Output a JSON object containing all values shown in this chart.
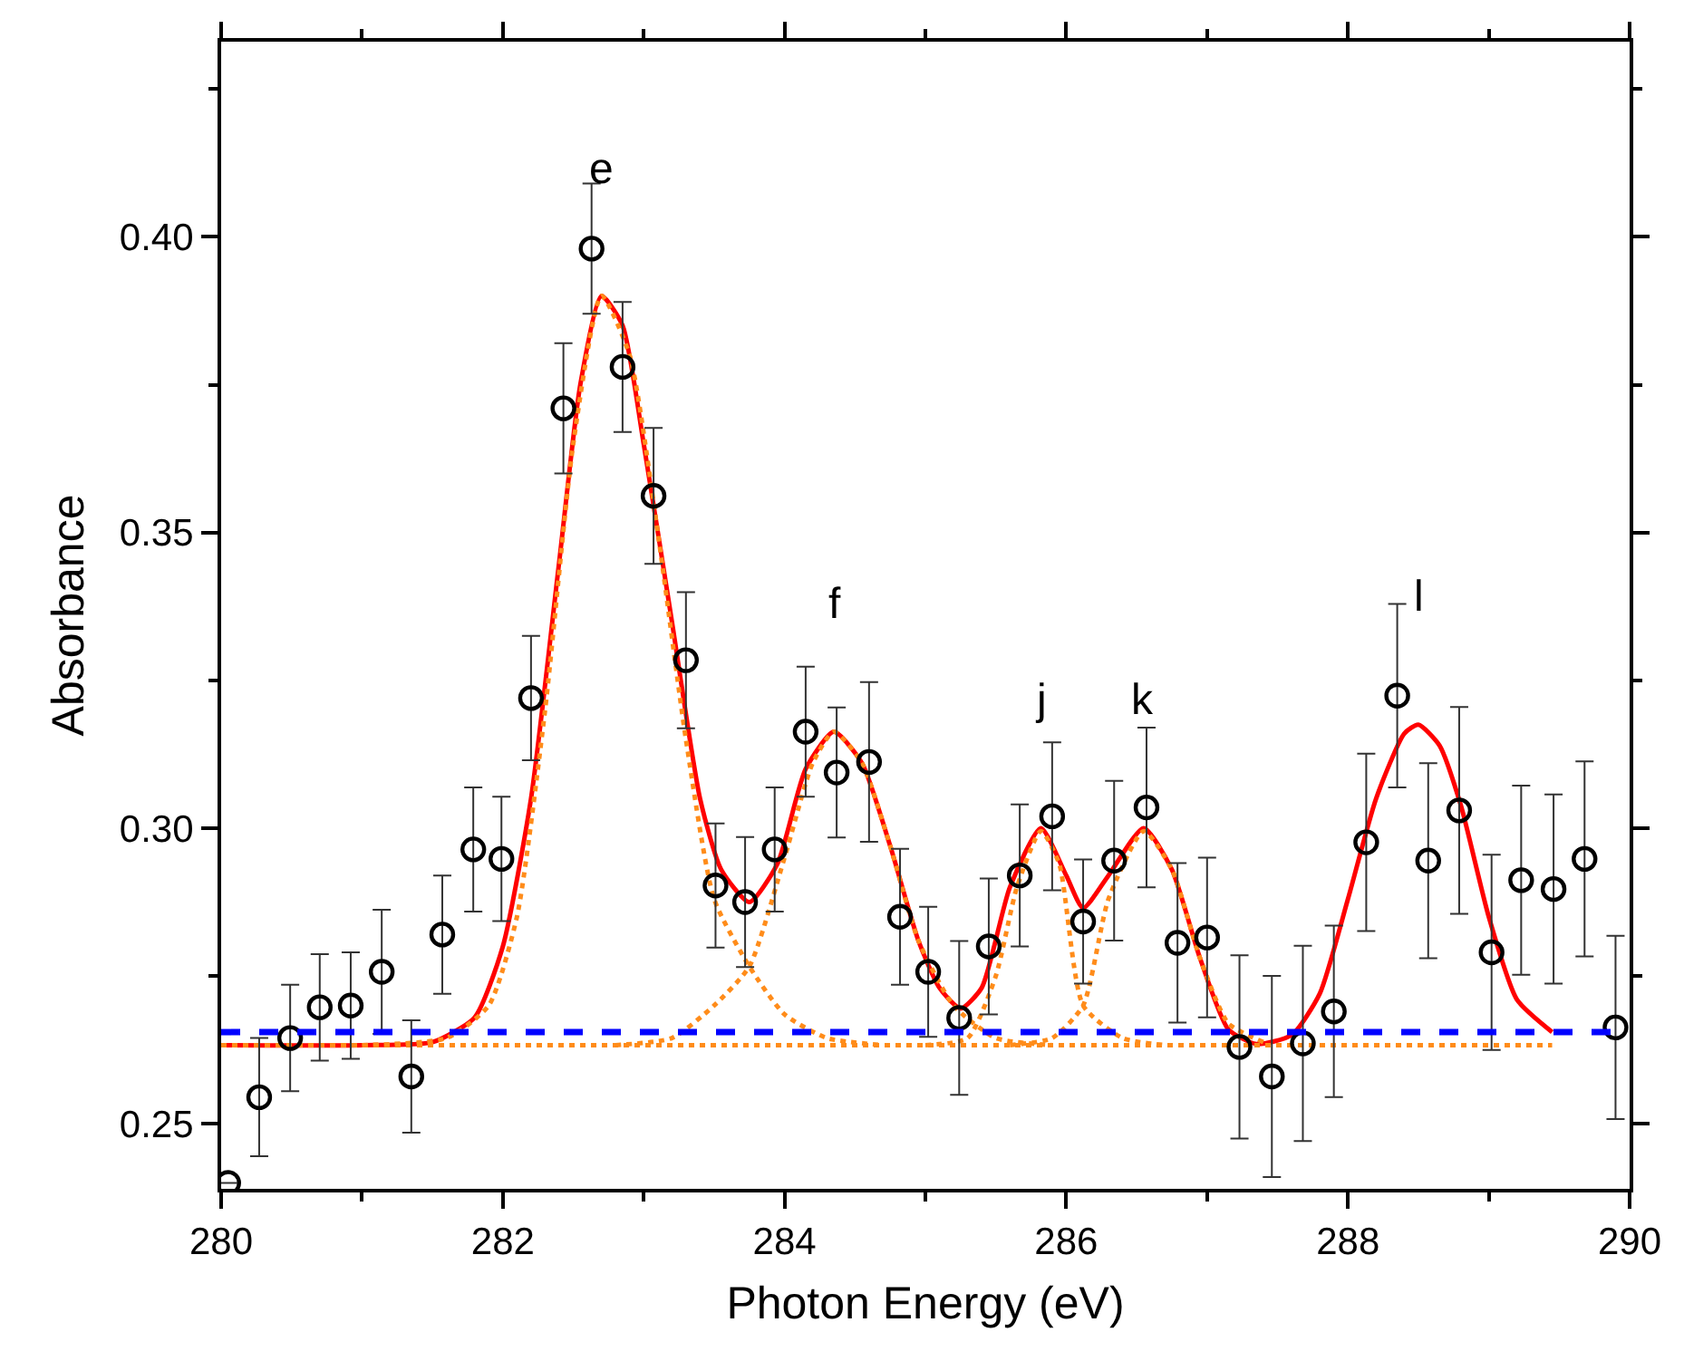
{
  "chart_data": {
    "type": "scatter",
    "xlabel": "Photon Energy (eV)",
    "ylabel": "Absorbance",
    "xlim": [
      280,
      290
    ],
    "ylim": [
      0.239,
      0.433
    ],
    "xticks": [
      280,
      {
        "value": 281,
        "label": null
      },
      282,
      {
        "value": 283,
        "label": null
      },
      284,
      {
        "value": 285,
        "label": null
      },
      286,
      {
        "value": 287,
        "label": null
      },
      288,
      {
        "value": 289,
        "label": null
      },
      290
    ],
    "yticks": [
      0.25,
      {
        "value": 0.275,
        "label": null
      },
      {
        "value": 0.3,
        "label": "0.30"
      },
      {
        "value": 0.325,
        "label": null
      },
      0.35,
      {
        "value": 0.375,
        "label": null
      },
      {
        "value": 0.4,
        "label": "0.40"
      },
      {
        "value": 0.425,
        "label": null
      }
    ],
    "ref_lines": [
      {
        "axis": "y",
        "value": 0.2655,
        "color": "#0000ff",
        "line_style": "dashed"
      }
    ],
    "annotations": [
      {
        "text": "e",
        "x": 282.7,
        "y": 0.39
      },
      {
        "text": "f",
        "x": 284.35,
        "y": 0.3163
      },
      {
        "text": "j",
        "x": 285.82,
        "y": 0.3
      },
      {
        "text": "k",
        "x": 286.55,
        "y": 0.3
      },
      {
        "text": "l",
        "x": 288.5,
        "y": 0.3175
      }
    ],
    "series": [
      {
        "type": "line",
        "color": "#ff8c1a",
        "line_style": "dotted",
        "marker": "none",
        "x": [
          280.0,
          289.45
        ],
        "values": [
          0.2633,
          0.2633
        ]
      },
      {
        "type": "line",
        "color": "#ff8c1a",
        "line_style": "dotted",
        "marker": "none",
        "x": [
          281.0,
          281.6,
          281.9,
          282.1,
          282.3,
          282.5,
          282.7,
          282.9,
          283.1,
          283.3,
          283.5,
          283.75,
          284.0,
          284.3,
          284.7
        ],
        "values": [
          0.2633,
          0.2645,
          0.27,
          0.285,
          0.32,
          0.365,
          0.39,
          0.38,
          0.35,
          0.315,
          0.288,
          0.2766,
          0.2685,
          0.2645,
          0.2633
        ]
      },
      {
        "type": "line",
        "color": "#ff8c1a",
        "line_style": "dotted",
        "marker": "none",
        "x": [
          282.8,
          283.2,
          283.5,
          283.75,
          284.0,
          284.2,
          284.35,
          284.55,
          284.75,
          284.95,
          285.2,
          285.5,
          285.9
        ],
        "values": [
          0.2633,
          0.2645,
          0.27,
          0.2766,
          0.295,
          0.311,
          0.3163,
          0.311,
          0.297,
          0.281,
          0.27,
          0.2645,
          0.2633
        ]
      },
      {
        "type": "line",
        "color": "#ff8c1a",
        "line_style": "dotted",
        "marker": "none",
        "x": [
          285.0,
          285.3,
          285.5,
          285.65,
          285.82,
          285.95,
          286.12,
          286.4,
          286.7
        ],
        "values": [
          0.2633,
          0.2645,
          0.275,
          0.29,
          0.2995,
          0.294,
          0.27,
          0.2645,
          0.2633
        ]
      },
      {
        "type": "line",
        "color": "#ff8c1a",
        "line_style": "dotted",
        "marker": "none",
        "x": [
          285.6,
          285.9,
          286.12,
          286.3,
          286.55,
          286.75,
          286.95,
          287.15,
          287.4
        ],
        "values": [
          0.2633,
          0.2645,
          0.27,
          0.288,
          0.2995,
          0.293,
          0.278,
          0.267,
          0.2638
        ]
      },
      {
        "type": "line",
        "color": "#ff0000",
        "line_style": "solid",
        "marker": "none",
        "x": [
          280.0,
          281.0,
          281.5,
          281.8,
          282.0,
          282.2,
          282.4,
          282.55,
          282.7,
          282.85,
          283.0,
          283.2,
          283.4,
          283.55,
          283.75,
          283.95,
          284.15,
          284.35,
          284.55,
          284.75,
          284.95,
          285.1,
          285.25,
          285.4,
          285.6,
          285.82,
          286.0,
          286.12,
          286.3,
          286.55,
          286.75,
          286.95,
          287.15,
          287.35,
          287.6,
          287.8,
          288.0,
          288.2,
          288.4,
          288.5,
          288.65,
          288.8,
          289.0,
          289.2,
          289.45
        ],
        "values": [
          0.2633,
          0.2633,
          0.2638,
          0.268,
          0.28,
          0.305,
          0.345,
          0.375,
          0.39,
          0.385,
          0.365,
          0.335,
          0.305,
          0.293,
          0.2875,
          0.294,
          0.31,
          0.3163,
          0.311,
          0.297,
          0.281,
          0.273,
          0.2695,
          0.273,
          0.29,
          0.3,
          0.292,
          0.2865,
          0.292,
          0.3,
          0.293,
          0.278,
          0.266,
          0.2635,
          0.265,
          0.272,
          0.288,
          0.305,
          0.316,
          0.3175,
          0.314,
          0.304,
          0.285,
          0.271,
          0.2655
        ]
      },
      {
        "color": "#000000",
        "marker": "circle",
        "x": [
          280.05,
          280.27,
          280.49,
          280.7,
          280.92,
          281.14,
          281.35,
          281.57,
          281.79,
          281.99,
          282.2,
          282.43,
          282.63,
          282.85,
          283.07,
          283.3,
          283.51,
          283.72,
          283.93,
          284.15,
          284.37,
          284.6,
          284.82,
          285.02,
          285.24,
          285.45,
          285.67,
          285.9,
          286.12,
          286.34,
          286.57,
          286.79,
          287.0,
          287.23,
          287.46,
          287.68,
          287.9,
          288.13,
          288.35,
          288.57,
          288.79,
          289.02,
          289.23,
          289.46,
          289.68,
          289.9
        ],
        "values": [
          0.24,
          0.2545,
          0.2645,
          0.2697,
          0.27,
          0.2757,
          0.258,
          0.282,
          0.2964,
          0.2948,
          0.322,
          0.371,
          0.398,
          0.378,
          0.3562,
          0.3284,
          0.2903,
          0.2875,
          0.2964,
          0.3163,
          0.3094,
          0.3112,
          0.285,
          0.2757,
          0.2679,
          0.28,
          0.292,
          0.302,
          0.2842,
          0.2945,
          0.3035,
          0.2806,
          0.2815,
          0.263,
          0.258,
          0.2636,
          0.269,
          0.2976,
          0.3224,
          0.2945,
          0.303,
          0.279,
          0.2912,
          0.2897,
          0.2948,
          0.2663
        ],
        "errors": [
          null,
          0.01,
          0.009,
          0.009,
          0.009,
          0.0105,
          0.0095,
          0.01,
          0.0105,
          0.0105,
          0.0105,
          0.011,
          0.011,
          0.011,
          0.0115,
          0.0115,
          0.0105,
          0.011,
          0.0105,
          0.011,
          0.011,
          0.0135,
          0.0115,
          0.011,
          0.013,
          0.0115,
          0.012,
          0.0125,
          0.0105,
          0.0135,
          0.0135,
          0.0135,
          0.0135,
          0.0155,
          0.017,
          0.0165,
          0.0145,
          0.015,
          0.0155,
          0.0165,
          0.0175,
          0.0165,
          0.016,
          0.016,
          0.0165,
          0.0155
        ]
      }
    ]
  }
}
